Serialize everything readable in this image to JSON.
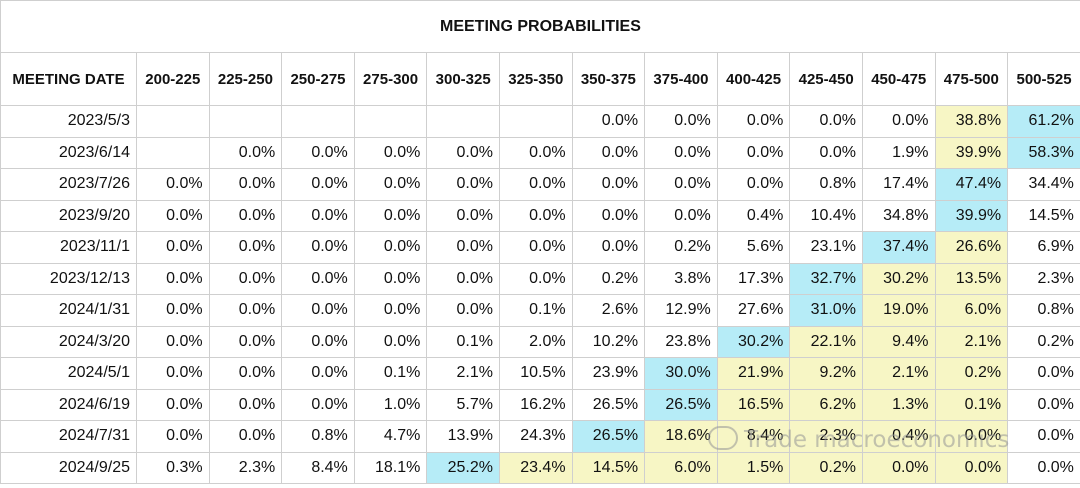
{
  "title": "MEETING PROBABILITIES",
  "date_header": "MEETING DATE",
  "colors": {
    "max": "#b6ecf7",
    "near": "#f7f6c5"
  },
  "watermark": "Trade macroeconomics",
  "chart_data": {
    "type": "table",
    "title": "MEETING PROBABILITIES",
    "columns": [
      "200-225",
      "225-250",
      "250-275",
      "275-300",
      "300-325",
      "325-350",
      "350-375",
      "375-400",
      "400-425",
      "425-450",
      "450-475",
      "475-500",
      "500-525"
    ],
    "rows": [
      {
        "date": "2023/5/3",
        "values": [
          "",
          "",
          "",
          "",
          "",
          "",
          "0.0%",
          "0.0%",
          "0.0%",
          "0.0%",
          "0.0%",
          "38.8%",
          "61.2%"
        ],
        "max": 12,
        "near": [
          11
        ]
      },
      {
        "date": "2023/6/14",
        "values": [
          "",
          "0.0%",
          "0.0%",
          "0.0%",
          "0.0%",
          "0.0%",
          "0.0%",
          "0.0%",
          "0.0%",
          "0.0%",
          "1.9%",
          "39.9%",
          "58.3%"
        ],
        "max": 12,
        "near": [
          11
        ]
      },
      {
        "date": "2023/7/26",
        "values": [
          "0.0%",
          "0.0%",
          "0.0%",
          "0.0%",
          "0.0%",
          "0.0%",
          "0.0%",
          "0.0%",
          "0.0%",
          "0.8%",
          "17.4%",
          "47.4%",
          "34.4%"
        ],
        "max": 11,
        "near": []
      },
      {
        "date": "2023/9/20",
        "values": [
          "0.0%",
          "0.0%",
          "0.0%",
          "0.0%",
          "0.0%",
          "0.0%",
          "0.0%",
          "0.0%",
          "0.4%",
          "10.4%",
          "34.8%",
          "39.9%",
          "14.5%"
        ],
        "max": 11,
        "near": []
      },
      {
        "date": "2023/11/1",
        "values": [
          "0.0%",
          "0.0%",
          "0.0%",
          "0.0%",
          "0.0%",
          "0.0%",
          "0.0%",
          "0.2%",
          "5.6%",
          "23.1%",
          "37.4%",
          "26.6%",
          "6.9%"
        ],
        "max": 10,
        "near": [
          11
        ]
      },
      {
        "date": "2023/12/13",
        "values": [
          "0.0%",
          "0.0%",
          "0.0%",
          "0.0%",
          "0.0%",
          "0.0%",
          "0.2%",
          "3.8%",
          "17.3%",
          "32.7%",
          "30.2%",
          "13.5%",
          "2.3%"
        ],
        "max": 9,
        "near": [
          10,
          11
        ]
      },
      {
        "date": "2024/1/31",
        "values": [
          "0.0%",
          "0.0%",
          "0.0%",
          "0.0%",
          "0.0%",
          "0.1%",
          "2.6%",
          "12.9%",
          "27.6%",
          "31.0%",
          "19.0%",
          "6.0%",
          "0.8%"
        ],
        "max": 9,
        "near": [
          10,
          11
        ]
      },
      {
        "date": "2024/3/20",
        "values": [
          "0.0%",
          "0.0%",
          "0.0%",
          "0.0%",
          "0.1%",
          "2.0%",
          "10.2%",
          "23.8%",
          "30.2%",
          "22.1%",
          "9.4%",
          "2.1%",
          "0.2%"
        ],
        "max": 8,
        "near": [
          9,
          10,
          11
        ]
      },
      {
        "date": "2024/5/1",
        "values": [
          "0.0%",
          "0.0%",
          "0.0%",
          "0.1%",
          "2.1%",
          "10.5%",
          "23.9%",
          "30.0%",
          "21.9%",
          "9.2%",
          "2.1%",
          "0.2%",
          "0.0%"
        ],
        "max": 7,
        "near": [
          8,
          9,
          10,
          11
        ]
      },
      {
        "date": "2024/6/19",
        "values": [
          "0.0%",
          "0.0%",
          "0.0%",
          "1.0%",
          "5.7%",
          "16.2%",
          "26.5%",
          "26.5%",
          "16.5%",
          "6.2%",
          "1.3%",
          "0.1%",
          "0.0%"
        ],
        "max": 7,
        "near": [
          8,
          9,
          10,
          11
        ]
      },
      {
        "date": "2024/7/31",
        "values": [
          "0.0%",
          "0.0%",
          "0.8%",
          "4.7%",
          "13.9%",
          "24.3%",
          "26.5%",
          "18.6%",
          "8.4%",
          "2.3%",
          "0.4%",
          "0.0%",
          "0.0%"
        ],
        "max": 6,
        "near": [
          7,
          8,
          9,
          10,
          11
        ]
      },
      {
        "date": "2024/9/25",
        "values": [
          "0.3%",
          "2.3%",
          "8.4%",
          "18.1%",
          "25.2%",
          "23.4%",
          "14.5%",
          "6.0%",
          "1.5%",
          "0.2%",
          "0.0%",
          "0.0%",
          "0.0%"
        ],
        "max": 4,
        "near": [
          5,
          6,
          7,
          8,
          9,
          10,
          11
        ]
      }
    ]
  }
}
